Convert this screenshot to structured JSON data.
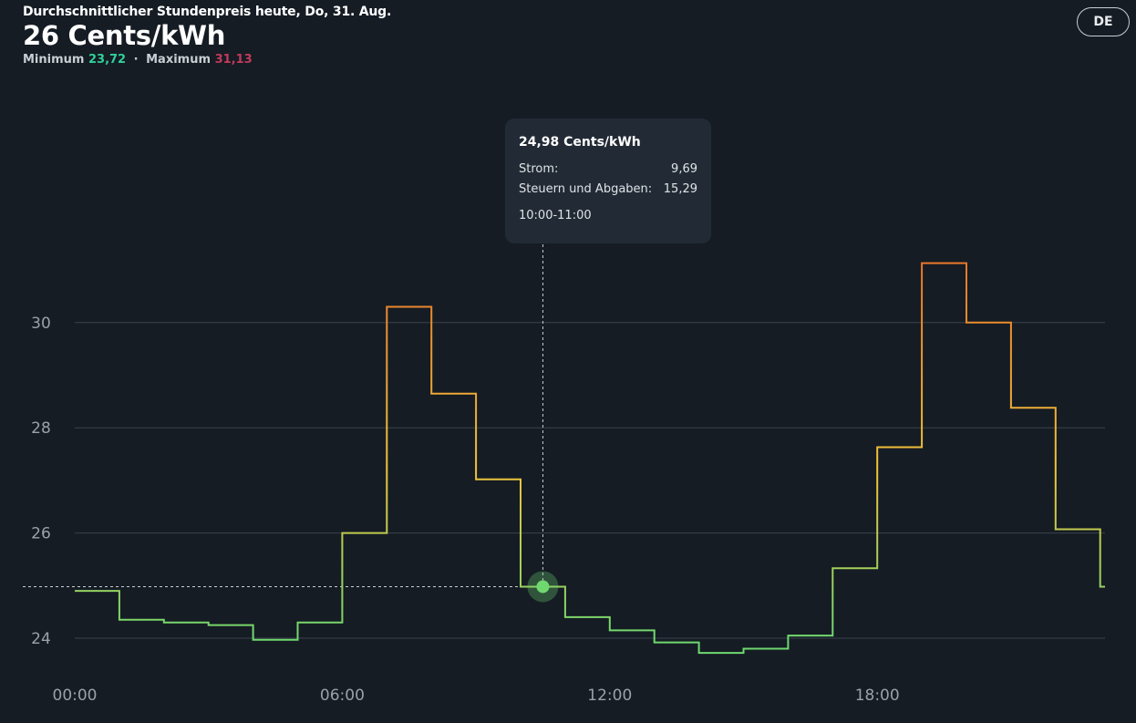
{
  "header": {
    "subtitle": "Durchschnittlicher Stundenpreis heute, Do, 31. Aug.",
    "headline": "26 Cents/kWh",
    "min_label": "Minimum",
    "min_value": "23,72",
    "max_label": "Maximum",
    "max_value": "31,13",
    "separator": "·"
  },
  "lang_button": "DE",
  "tooltip": {
    "title": "24,98 Cents/kWh",
    "rows": [
      {
        "label": "Strom:",
        "value": "9,69"
      },
      {
        "label": "Steuern und Abgaben:",
        "value": "15,29"
      }
    ],
    "time": "10:00-11:00"
  },
  "colors": {
    "low": "#6fd86f",
    "mid": "#f0c43a",
    "high": "#e9772a",
    "grid": "#3a424b",
    "axis_text": "#9aa1a8",
    "min_value": "#2fd09a",
    "max_value": "#c23b5a"
  },
  "chart_data": {
    "type": "line",
    "step": true,
    "x": [
      0,
      1,
      2,
      3,
      4,
      5,
      6,
      7,
      8,
      9,
      10,
      11,
      12,
      13,
      14,
      15,
      16,
      17,
      18,
      19,
      20,
      21,
      22,
      23
    ],
    "values": [
      24.9,
      24.35,
      24.3,
      24.25,
      23.97,
      24.3,
      26.0,
      30.3,
      28.65,
      27.02,
      24.98,
      24.4,
      24.15,
      23.92,
      23.72,
      23.8,
      24.05,
      25.33,
      27.63,
      31.13,
      30.0,
      28.38,
      26.07,
      24.98
    ],
    "x_tick_labels": [
      "00:00",
      "06:00",
      "12:00",
      "18:00"
    ],
    "x_tick_positions": [
      0,
      6,
      12,
      18
    ],
    "y_ticks": [
      24,
      26,
      28,
      30
    ],
    "ylim": [
      23.5,
      33
    ],
    "xlim": [
      0,
      23
    ],
    "grid": "horizontal",
    "highlight_index": 10
  }
}
